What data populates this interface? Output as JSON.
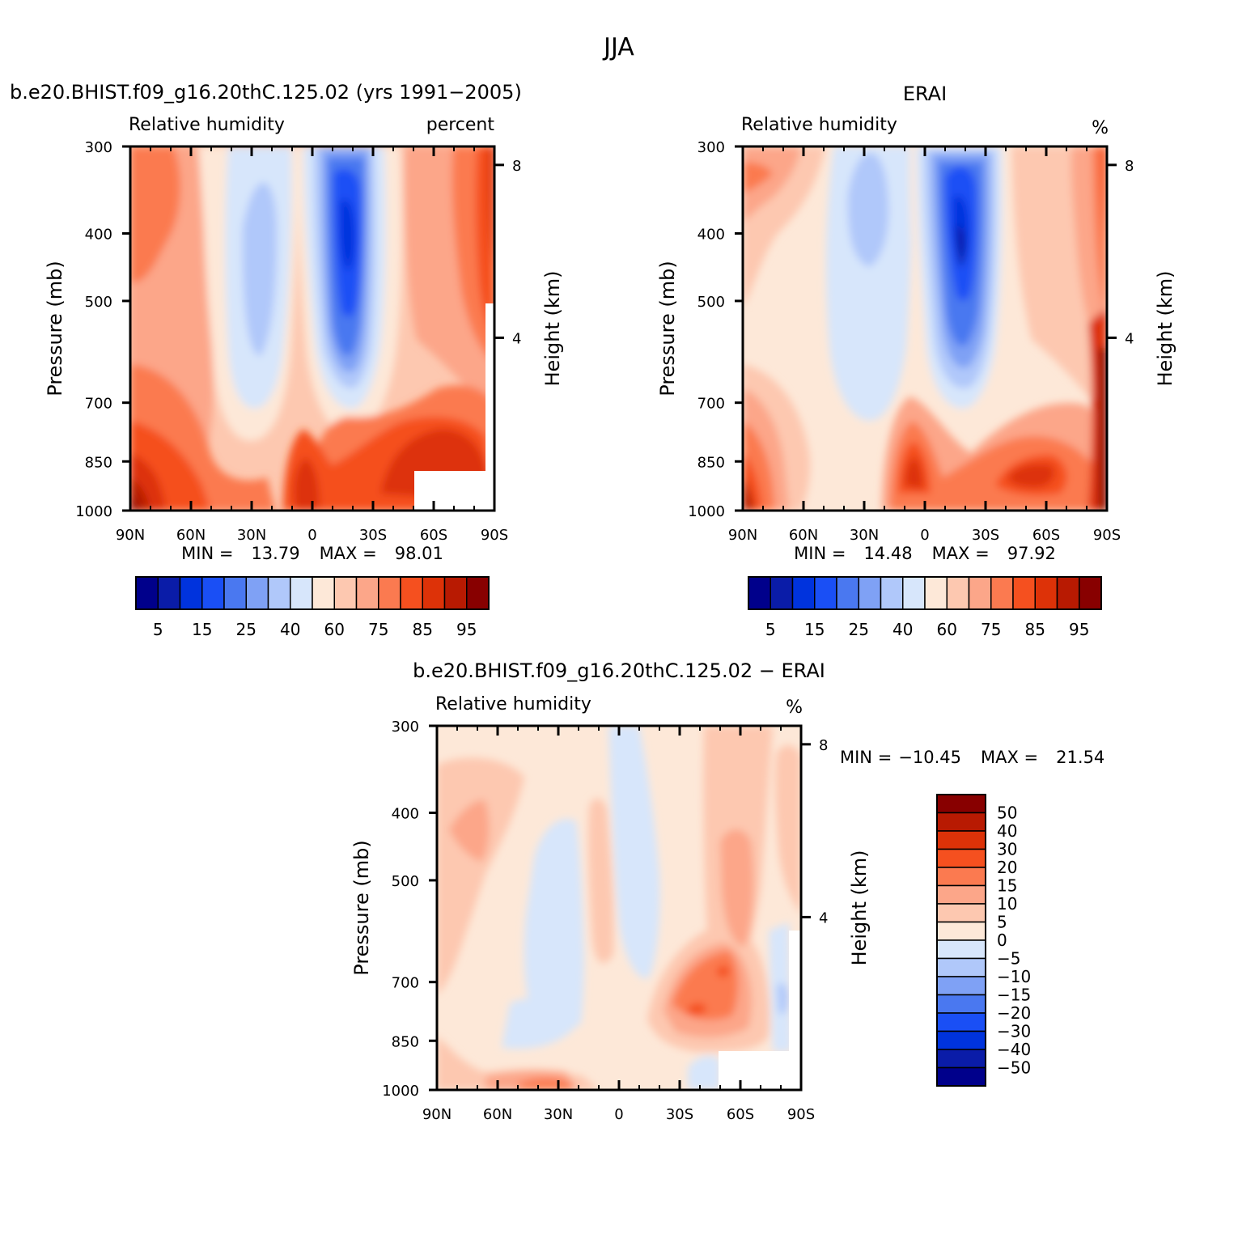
{
  "figure": {
    "title": "JJA"
  },
  "chart_data": [
    {
      "type": "heatmap",
      "case_title": "b.e20.BHIST.f09_g16.20thC.125.02 (yrs 1991−2005)",
      "left_label": "Relative humidity",
      "right_label": "percent",
      "xlabel": "",
      "ylabel": "Pressure (mb)",
      "ylabel_right": "Height (km)",
      "x_ticks": [
        "90N",
        "60N",
        "30N",
        "0",
        "30S",
        "60S",
        "90S"
      ],
      "y_ticks": [
        "300",
        "400",
        "500",
        "700",
        "850",
        "1000"
      ],
      "height_ticks": [
        "8",
        "4"
      ],
      "min_label": "MIN =",
      "min_value": "13.79",
      "max_label": "MAX =",
      "max_value": "98.01",
      "min_text": "MIN =   13.79   MAX =   98.01",
      "levels": [
        5,
        10,
        15,
        20,
        25,
        30,
        40,
        50,
        60,
        70,
        75,
        80,
        85,
        90,
        95
      ],
      "colorbar_labels": [
        "5",
        "15",
        "25",
        "40",
        "60",
        "75",
        "85",
        "95"
      ],
      "lat_range": [
        90,
        -90
      ],
      "p_range": [
        300,
        1000
      ]
    },
    {
      "type": "heatmap",
      "case_title": "ERAI",
      "left_label": "Relative humidity",
      "right_label": "%",
      "xlabel": "",
      "ylabel": "Pressure (mb)",
      "ylabel_right": "Height (km)",
      "x_ticks": [
        "90N",
        "60N",
        "30N",
        "0",
        "30S",
        "60S",
        "90S"
      ],
      "y_ticks": [
        "300",
        "400",
        "500",
        "700",
        "850",
        "1000"
      ],
      "height_ticks": [
        "8",
        "4"
      ],
      "min_label": "MIN =",
      "min_value": "14.48",
      "max_label": "MAX =",
      "max_value": "97.92",
      "min_text": "MIN =   14.48   MAX =   97.92",
      "levels": [
        5,
        10,
        15,
        20,
        25,
        30,
        40,
        50,
        60,
        70,
        75,
        80,
        85,
        90,
        95
      ],
      "colorbar_labels": [
        "5",
        "15",
        "25",
        "40",
        "60",
        "75",
        "85",
        "95"
      ],
      "lat_range": [
        90,
        -90
      ],
      "p_range": [
        300,
        1000
      ]
    },
    {
      "type": "heatmap",
      "case_title": "b.e20.BHIST.f09_g16.20thC.125.02 − ERAI",
      "left_label": "Relative humidity",
      "right_label": "%",
      "xlabel": "",
      "ylabel": "Pressure (mb)",
      "ylabel_right": "Height (km)",
      "x_ticks": [
        "90N",
        "60N",
        "30N",
        "0",
        "30S",
        "60S",
        "90S"
      ],
      "y_ticks": [
        "300",
        "400",
        "500",
        "700",
        "850",
        "1000"
      ],
      "height_ticks": [
        "8",
        "4"
      ],
      "min_label": "MIN =",
      "min_value": "−10.45",
      "max_label": "MAX =",
      "max_value": "21.54",
      "min_text": "MIN = −10.45   MAX =   21.54",
      "levels": [
        -50,
        -40,
        -30,
        -20,
        -15,
        -10,
        -5,
        0,
        5,
        10,
        15,
        20,
        30,
        40,
        50
      ],
      "colorbar_labels": [
        "50",
        "40",
        "30",
        "20",
        "15",
        "10",
        "5",
        "0",
        "−5",
        "−10",
        "−15",
        "−20",
        "−30",
        "−40",
        "−50"
      ],
      "lat_range": [
        90,
        -90
      ],
      "p_range": [
        300,
        1000
      ]
    }
  ],
  "colormap": [
    "#00008b",
    "#0a1ca8",
    "#0033dd",
    "#1a4ff5",
    "#4a78f0",
    "#7fa1f5",
    "#b0c8fa",
    "#d7e6fb",
    "#fde8d8",
    "#fdc8b0",
    "#fca689",
    "#fb7a50",
    "#f5501f",
    "#dd3208",
    "#b81a02",
    "#880000"
  ]
}
